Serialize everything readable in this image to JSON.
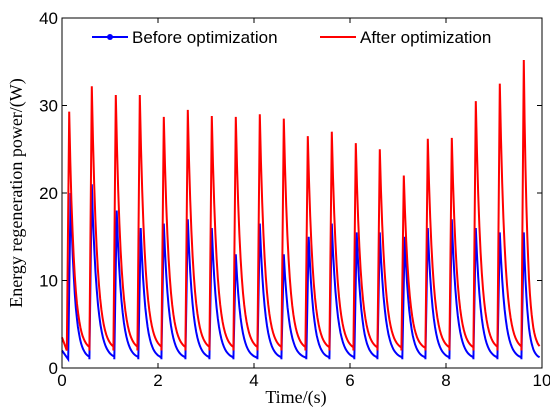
{
  "chart_data": {
    "type": "line",
    "xlabel": "Time/(s)",
    "ylabel": "Energy regeneration power/(W)",
    "xlim": [
      0,
      10
    ],
    "ylim": [
      0,
      40
    ],
    "xticks": [
      0,
      2,
      4,
      6,
      8,
      10
    ],
    "yticks": [
      0,
      10,
      20,
      30,
      40
    ],
    "x_tick_labels": [
      "0",
      "2",
      "4",
      "6",
      "8",
      "10"
    ],
    "y_tick_labels": [
      "0",
      "10",
      "20",
      "30",
      "40"
    ],
    "grid": false,
    "legend_position": "top",
    "series": [
      {
        "name": "Before optimization",
        "color": "#0000ff",
        "marker": "dot",
        "peaks": [
          {
            "x": 0.18,
            "y": 20.0
          },
          {
            "x": 0.62,
            "y": 21.0
          },
          {
            "x": 1.14,
            "y": 18.0
          },
          {
            "x": 1.64,
            "y": 16.0
          },
          {
            "x": 2.12,
            "y": 16.5
          },
          {
            "x": 2.62,
            "y": 17.0
          },
          {
            "x": 3.12,
            "y": 16.0
          },
          {
            "x": 3.62,
            "y": 13.0
          },
          {
            "x": 4.12,
            "y": 16.5
          },
          {
            "x": 4.62,
            "y": 13.0
          },
          {
            "x": 5.14,
            "y": 15.0
          },
          {
            "x": 5.62,
            "y": 16.5
          },
          {
            "x": 6.14,
            "y": 15.5
          },
          {
            "x": 6.62,
            "y": 15.5
          },
          {
            "x": 7.14,
            "y": 15.0
          },
          {
            "x": 7.62,
            "y": 16.0
          },
          {
            "x": 8.12,
            "y": 17.0
          },
          {
            "x": 8.62,
            "y": 16.0
          },
          {
            "x": 9.12,
            "y": 15.5
          },
          {
            "x": 9.62,
            "y": 15.5
          }
        ],
        "baseline": 1.0
      },
      {
        "name": "After optimization",
        "color": "#ff0000",
        "marker": "none",
        "peaks": [
          {
            "x": 0.15,
            "y": 29.3
          },
          {
            "x": 0.62,
            "y": 32.2
          },
          {
            "x": 1.12,
            "y": 31.2
          },
          {
            "x": 1.62,
            "y": 31.2
          },
          {
            "x": 2.12,
            "y": 28.7
          },
          {
            "x": 2.62,
            "y": 29.5
          },
          {
            "x": 3.12,
            "y": 28.8
          },
          {
            "x": 3.62,
            "y": 28.7
          },
          {
            "x": 4.12,
            "y": 29.0
          },
          {
            "x": 4.62,
            "y": 28.5
          },
          {
            "x": 5.12,
            "y": 26.5
          },
          {
            "x": 5.62,
            "y": 27.0
          },
          {
            "x": 6.12,
            "y": 25.7
          },
          {
            "x": 6.62,
            "y": 25.0
          },
          {
            "x": 7.12,
            "y": 22.0
          },
          {
            "x": 7.62,
            "y": 26.2
          },
          {
            "x": 8.12,
            "y": 26.3
          },
          {
            "x": 8.62,
            "y": 30.5
          },
          {
            "x": 9.12,
            "y": 32.5
          },
          {
            "x": 9.62,
            "y": 35.2
          }
        ],
        "baseline": 2.0
      }
    ]
  }
}
